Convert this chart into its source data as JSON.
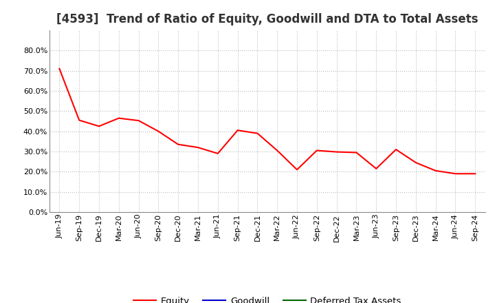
{
  "title": "[4593]  Trend of Ratio of Equity, Goodwill and DTA to Total Assets",
  "x_labels": [
    "Jun-19",
    "Sep-19",
    "Dec-19",
    "Mar-20",
    "Jun-20",
    "Sep-20",
    "Dec-20",
    "Mar-21",
    "Jun-21",
    "Sep-21",
    "Dec-21",
    "Mar-22",
    "Jun-22",
    "Sep-22",
    "Dec-22",
    "Mar-23",
    "Jun-23",
    "Sep-23",
    "Dec-23",
    "Mar-24",
    "Jun-24",
    "Sep-24"
  ],
  "equity": [
    0.71,
    0.455,
    0.425,
    0.465,
    0.453,
    0.4,
    0.335,
    0.32,
    0.29,
    0.405,
    0.39,
    0.305,
    0.21,
    0.305,
    0.298,
    0.295,
    0.215,
    0.31,
    0.245,
    0.205,
    0.19,
    0.19
  ],
  "goodwill": [
    null,
    null,
    null,
    null,
    null,
    null,
    null,
    null,
    null,
    null,
    null,
    null,
    null,
    null,
    null,
    null,
    null,
    null,
    null,
    null,
    null,
    null
  ],
  "dta": [
    null,
    null,
    null,
    null,
    null,
    null,
    null,
    null,
    null,
    null,
    null,
    null,
    null,
    null,
    null,
    null,
    null,
    null,
    null,
    null,
    null,
    null
  ],
  "equity_color": "#FF0000",
  "goodwill_color": "#0000CC",
  "dta_color": "#006600",
  "ylim": [
    0.0,
    0.9
  ],
  "yticks": [
    0.0,
    0.1,
    0.2,
    0.3,
    0.4,
    0.5,
    0.6,
    0.7,
    0.8
  ],
  "background_color": "#FFFFFF",
  "plot_bg_color": "#FFFFFF",
  "grid_color": "#BBBBBB",
  "legend_labels": [
    "Equity",
    "Goodwill",
    "Deferred Tax Assets"
  ],
  "title_fontsize": 12,
  "tick_fontsize": 8,
  "legend_fontsize": 9.5,
  "title_color": "#333333"
}
